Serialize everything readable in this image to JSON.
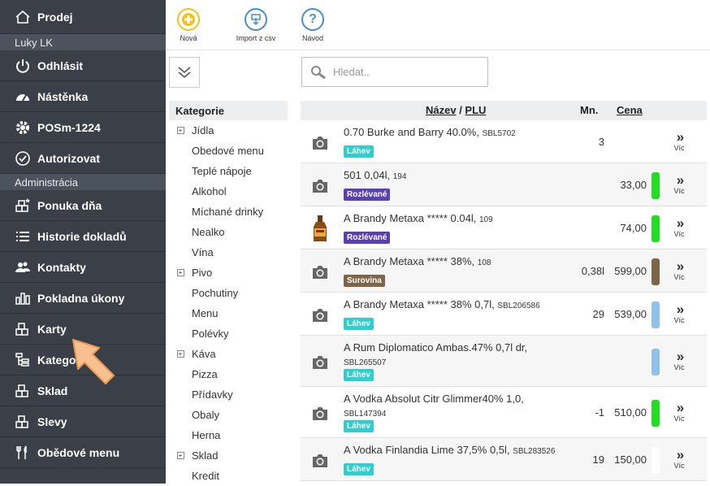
{
  "sidebar": {
    "top_item": "Prodej",
    "user": "Luky LK",
    "items1": [
      "Odhlásit",
      "Nástěnka",
      "POSm-1224",
      "Autorizovat"
    ],
    "section": "Administrácia",
    "items2": [
      "Ponuka dňa",
      "Historie dokladů",
      "Kontakty",
      "Pokladna úkony",
      "Karty",
      "Kategorie",
      "Sklad",
      "Slevy",
      "Obědové menu"
    ]
  },
  "toolbar": {
    "new_label": "Nová",
    "import_label": "Import z csv",
    "help_label": "Návod"
  },
  "search": {
    "placeholder": "Hledat.."
  },
  "categories": {
    "header": "Kategorie",
    "items": [
      {
        "label": "Jídla",
        "expandable": true
      },
      {
        "label": "Obedové menu",
        "expandable": false
      },
      {
        "label": "Teplé nápoje",
        "expandable": false
      },
      {
        "label": "Alkohol",
        "expandable": false
      },
      {
        "label": "Míchané drinky",
        "expandable": false
      },
      {
        "label": "Nealko",
        "expandable": false
      },
      {
        "label": "Vína",
        "expandable": false
      },
      {
        "label": "Pivo",
        "expandable": true
      },
      {
        "label": "Pochutiny",
        "expandable": false
      },
      {
        "label": "Menu",
        "expandable": false
      },
      {
        "label": "Polévky",
        "expandable": false
      },
      {
        "label": "Káva",
        "expandable": true
      },
      {
        "label": "Pizza",
        "expandable": false
      },
      {
        "label": "Přídavky",
        "expandable": false
      },
      {
        "label": "Obaly",
        "expandable": false
      },
      {
        "label": "Herna",
        "expandable": false
      },
      {
        "label": "Sklad",
        "expandable": true
      },
      {
        "label": "Kredit",
        "expandable": false
      }
    ]
  },
  "table": {
    "col_name": "Název",
    "col_sep": " / ",
    "col_plu": "PLU",
    "col_qty": "Mn.",
    "col_price": "Cena",
    "more_label": "Víc",
    "rows": [
      {
        "name": "0.70 Burke and Barry 40.0%,",
        "plu": "SBL5702",
        "badge": "Láhev",
        "badge_color": "#2ecfce",
        "qty": "3",
        "price": "",
        "bar_color": "",
        "image": "camera"
      },
      {
        "name": "501 0,04l,",
        "plu": "194",
        "badge": "Rozlévané",
        "badge_color": "#5a3fb5",
        "qty": "",
        "price": "33,00",
        "bar_color": "#22dd22",
        "image": "camera"
      },
      {
        "name": "A Brandy Metaxa ***** 0.04l,",
        "plu": "109",
        "badge": "Rozlévané",
        "badge_color": "#5a3fb5",
        "qty": "",
        "price": "74,00",
        "bar_color": "#22dd22",
        "image": "bottle"
      },
      {
        "name": "A Brandy Metaxa ***** 38%,",
        "plu": "108",
        "badge": "Surovina",
        "badge_color": "#7d6547",
        "qty": "0,38l",
        "price": "599,00",
        "bar_color": "#7d6547",
        "image": "camera"
      },
      {
        "name": "A Brandy Metaxa ***** 38% 0,7l,",
        "plu": "SBL206586",
        "badge": "Láhev",
        "badge_color": "#2ecfce",
        "qty": "29",
        "price": "539,00",
        "bar_color": "#8ec2ea",
        "image": "camera"
      },
      {
        "name": "A Rum Diplomatico Ambas.47% 0,7l dr,",
        "plu": "SBL265507",
        "badge": "Láhev",
        "badge_color": "#2ecfce",
        "qty": "",
        "price": "",
        "bar_color": "#8ec2ea",
        "image": "camera"
      },
      {
        "name": "A Vodka Absolut Citr Glimmer40% 1,0,",
        "plu": "SBL147394",
        "badge": "Láhev",
        "badge_color": "#2ecfce",
        "qty": "-1",
        "price": "510,00",
        "bar_color": "#22dd22",
        "image": "camera"
      },
      {
        "name": "A Vodka Finlandia Lime 37,5% 0,5l,",
        "plu": "SBL283526",
        "badge": "Láhev",
        "badge_color": "#2ecfce",
        "qty": "19",
        "price": "150,00",
        "bar_color": "#ffffff",
        "image": "camera"
      }
    ]
  }
}
